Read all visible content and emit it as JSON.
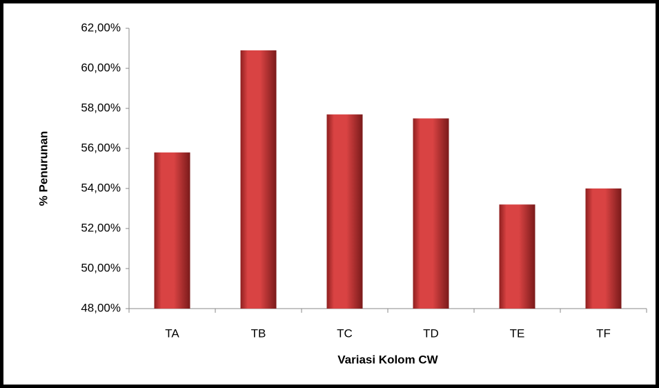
{
  "chart_data": {
    "type": "bar",
    "x_label": "Variasi Kolom CW",
    "y_label": "% Penurunan",
    "categories": [
      "TA",
      "TB",
      "TC",
      "TD",
      "TE",
      "TF"
    ],
    "values": [
      55.8,
      60.9,
      57.7,
      57.5,
      53.2,
      54.0
    ],
    "color": "#d94343",
    "ylim": [
      48,
      62
    ],
    "yticks": [
      {
        "value": 48,
        "label": "48,00%"
      },
      {
        "value": 50,
        "label": "50,00%"
      },
      {
        "value": 52,
        "label": "52,00%"
      },
      {
        "value": 54,
        "label": "54,00%"
      },
      {
        "value": 56,
        "label": "56,00%"
      },
      {
        "value": 58,
        "label": "58,00%"
      },
      {
        "value": 60,
        "label": "60,00%"
      },
      {
        "value": 62,
        "label": "62,00%"
      }
    ],
    "grid": false
  }
}
